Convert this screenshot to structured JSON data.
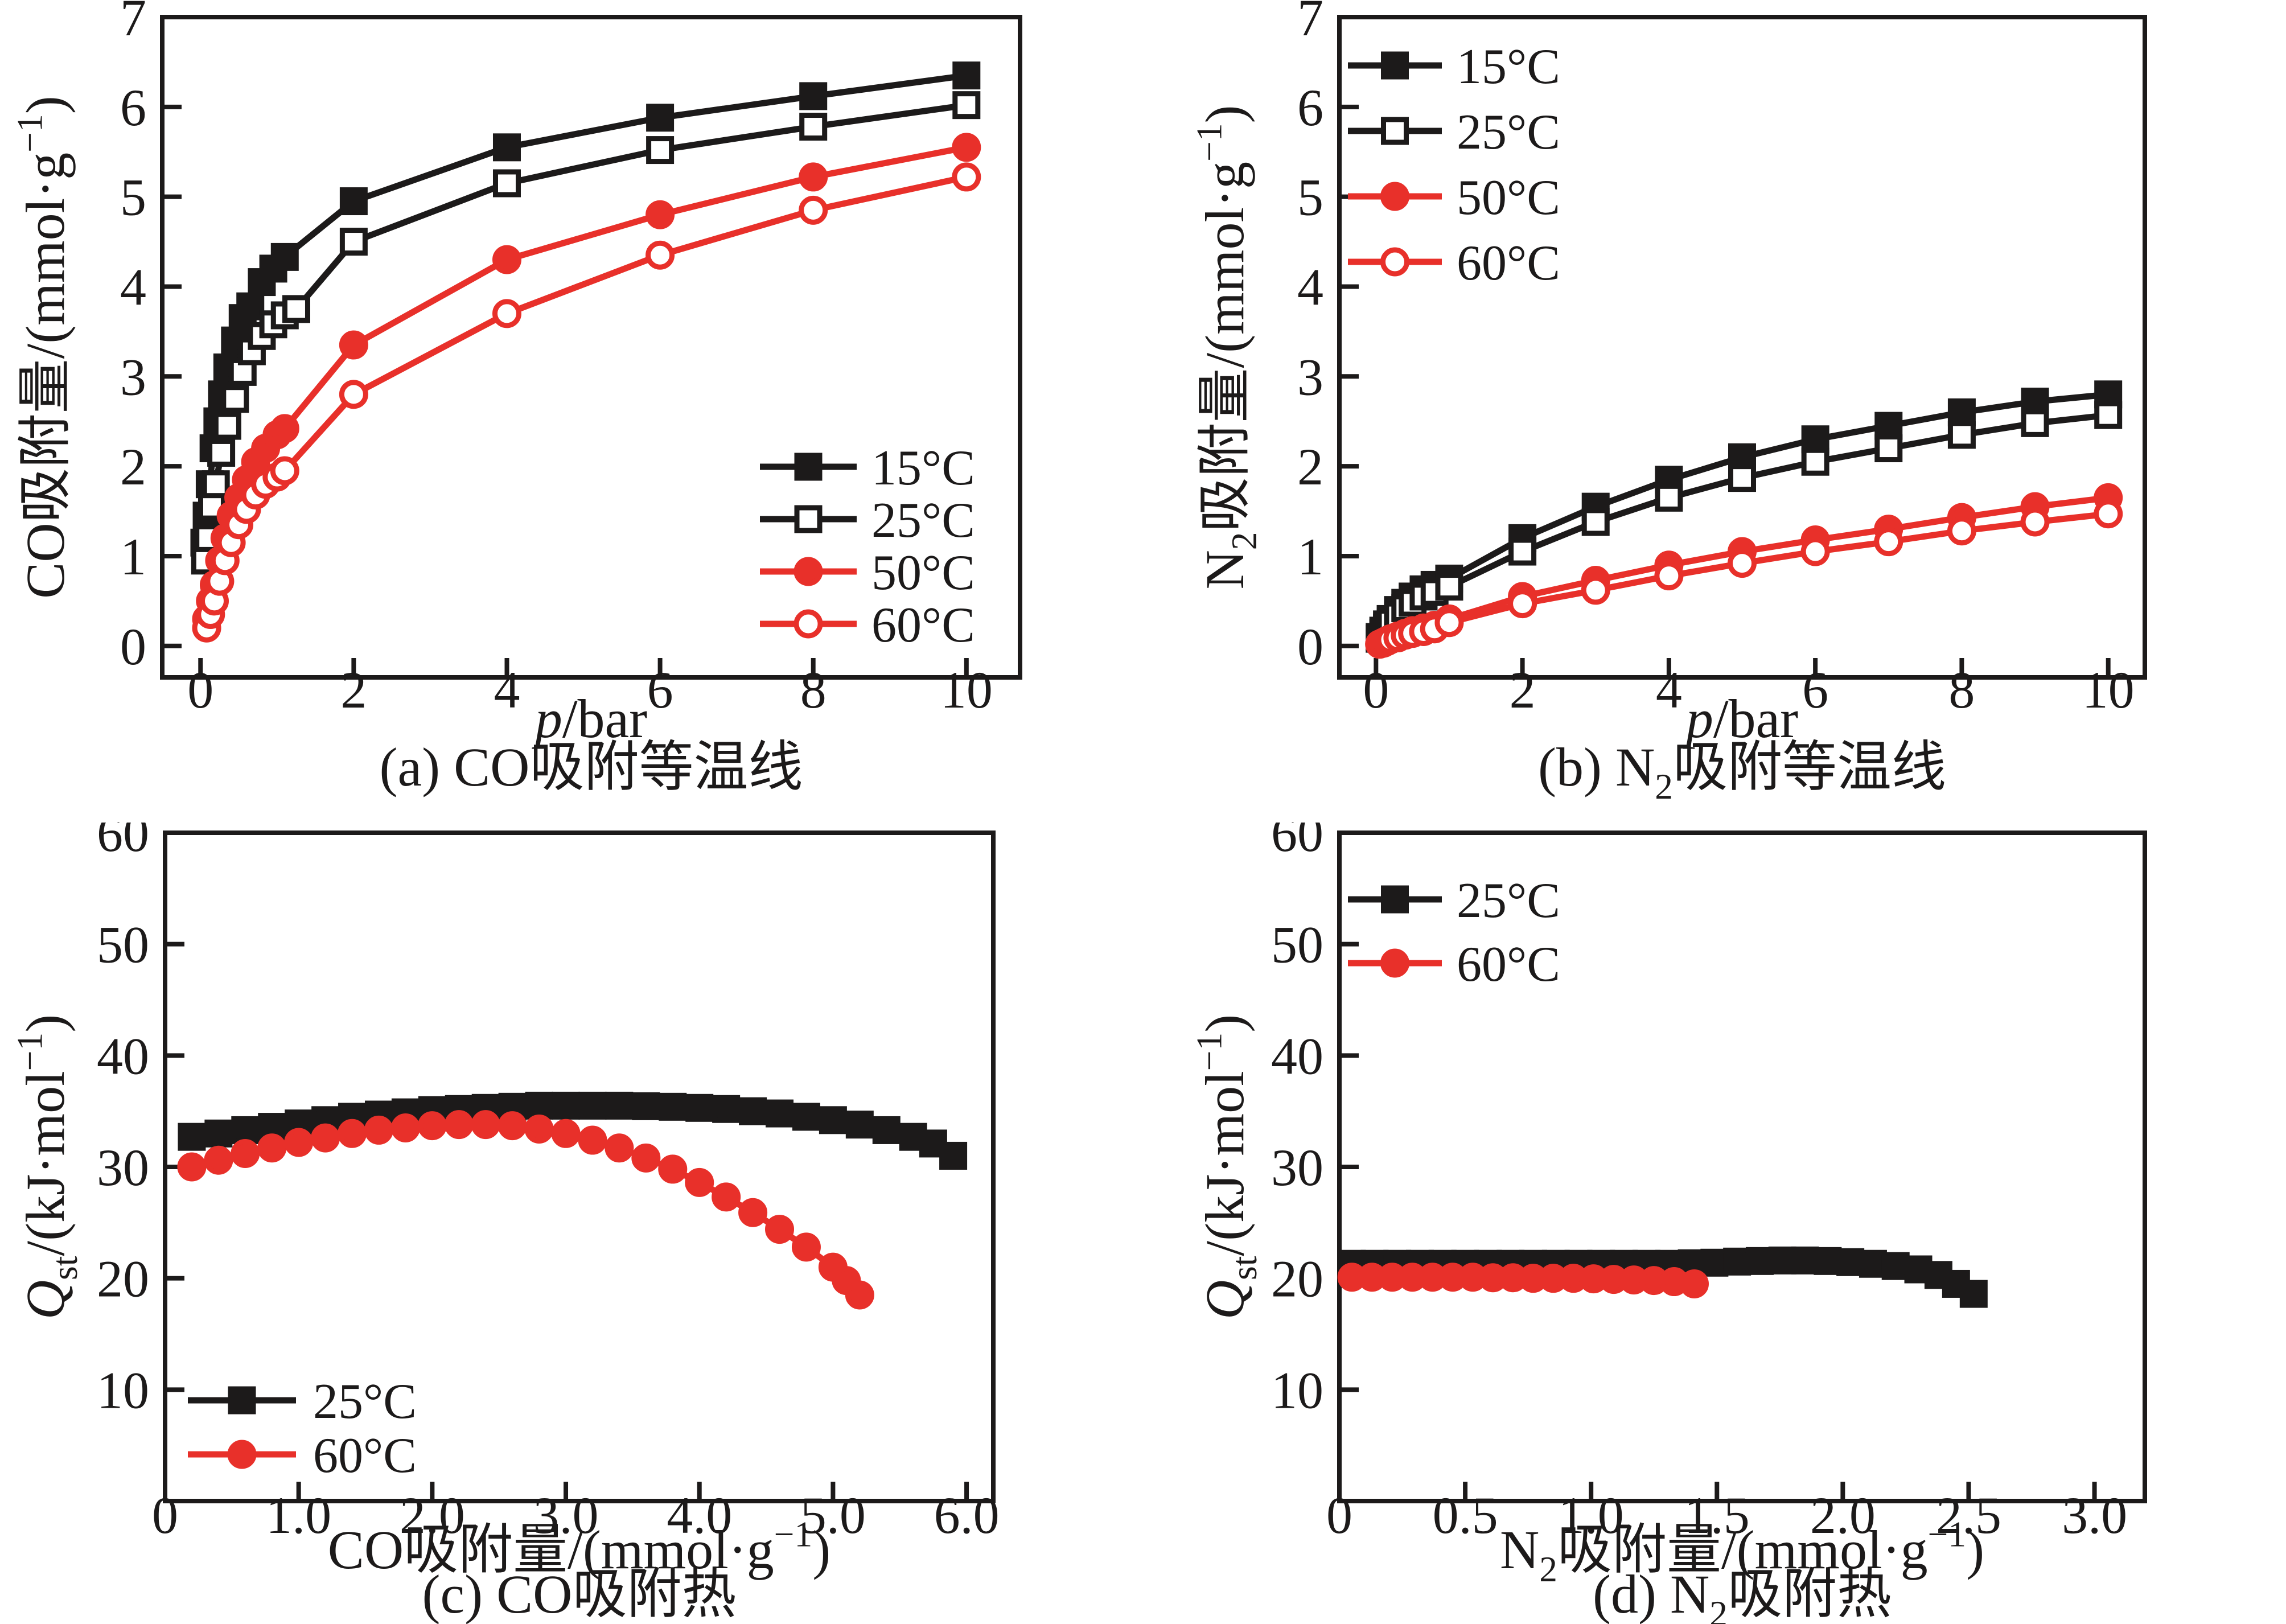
{
  "figure_title": "",
  "colors": {
    "black_series": "#1c1a1a",
    "red_series": "#e8302a",
    "axis": "#1c1a1a",
    "background": "#ffffff"
  },
  "chart_data": [
    {
      "panel": "a",
      "type": "line",
      "title": "(a) CO吸附等温线",
      "xlabel": "p/bar",
      "ylabel": "CO吸附量/(mmol·g⁻¹)",
      "xlabel_segments": [
        {
          "t": "p",
          "s": "i"
        },
        {
          "t": "/bar",
          "s": "n"
        }
      ],
      "ylabel_segments": [
        {
          "t": "CO吸附量/(mmol·g",
          "s": "n"
        },
        {
          "t": "−1",
          "s": "sup"
        },
        {
          "t": ")",
          "s": "n"
        }
      ],
      "caption_segments": [
        {
          "t": "(a) CO吸附等温线",
          "s": "n"
        }
      ],
      "xlim": [
        -0.5,
        10.7
      ],
      "ylim": [
        -0.35,
        7
      ],
      "xticks": [
        0,
        2,
        4,
        6,
        8,
        10
      ],
      "xtick_labels": [
        "0",
        "2",
        "4",
        "6",
        "8",
        "10"
      ],
      "yticks": [
        0,
        1,
        2,
        3,
        4,
        5,
        6,
        7
      ],
      "ytick_labels": [
        "0",
        "1",
        "2",
        "3",
        "4",
        "5",
        "6",
        "7"
      ],
      "grid": false,
      "legend_position": "bottom-right",
      "series": [
        {
          "name": "15°C",
          "color": "#1c1a1a",
          "marker": "square",
          "fill": "filled",
          "x": [
            0.05,
            0.08,
            0.12,
            0.17,
            0.22,
            0.28,
            0.35,
            0.45,
            0.55,
            0.65,
            0.8,
            0.95,
            1.1,
            2,
            4,
            6,
            8,
            10
          ],
          "y": [
            1.15,
            1.45,
            1.8,
            2.2,
            2.5,
            2.8,
            3.1,
            3.4,
            3.65,
            3.78,
            4.05,
            4.2,
            4.33,
            4.95,
            5.55,
            5.88,
            6.12,
            6.35
          ]
        },
        {
          "name": "25°C",
          "color": "#1c1a1a",
          "marker": "square",
          "fill": "open",
          "x": [
            0.06,
            0.1,
            0.15,
            0.2,
            0.27,
            0.35,
            0.45,
            0.55,
            0.67,
            0.8,
            0.95,
            1.1,
            1.25,
            2,
            4,
            6,
            8,
            10
          ],
          "y": [
            0.95,
            1.2,
            1.55,
            1.8,
            2.15,
            2.45,
            2.75,
            3.05,
            3.28,
            3.45,
            3.58,
            3.68,
            3.75,
            4.5,
            5.15,
            5.52,
            5.78,
            6.02
          ]
        },
        {
          "name": "50°C",
          "color": "#e8302a",
          "marker": "circle",
          "fill": "filled",
          "x": [
            0.08,
            0.13,
            0.18,
            0.25,
            0.32,
            0.4,
            0.5,
            0.6,
            0.72,
            0.85,
            1.0,
            1.1,
            2,
            4,
            6,
            8,
            10
          ],
          "y": [
            0.3,
            0.5,
            0.68,
            0.95,
            1.2,
            1.45,
            1.65,
            1.85,
            2.05,
            2.2,
            2.35,
            2.42,
            3.35,
            4.3,
            4.8,
            5.22,
            5.55
          ]
        },
        {
          "name": "60°C",
          "color": "#e8302a",
          "marker": "circle",
          "fill": "open",
          "x": [
            0.08,
            0.13,
            0.18,
            0.25,
            0.32,
            0.4,
            0.5,
            0.6,
            0.72,
            0.85,
            1.0,
            1.1,
            2,
            4,
            6,
            8,
            10
          ],
          "y": [
            0.2,
            0.35,
            0.5,
            0.72,
            0.95,
            1.15,
            1.35,
            1.52,
            1.68,
            1.8,
            1.88,
            1.95,
            2.8,
            3.7,
            4.35,
            4.85,
            5.22
          ]
        }
      ]
    },
    {
      "panel": "b",
      "type": "line",
      "title": "(b) N₂吸附等温线",
      "xlabel": "p/bar",
      "ylabel": "N₂吸附量/(mmol·g⁻¹)",
      "xlabel_segments": [
        {
          "t": "p",
          "s": "i"
        },
        {
          "t": "/bar",
          "s": "n"
        }
      ],
      "ylabel_segments": [
        {
          "t": "N",
          "s": "n"
        },
        {
          "t": "2",
          "s": "sub"
        },
        {
          "t": "吸附量/(mmol·g",
          "s": "n"
        },
        {
          "t": "−1",
          "s": "sup"
        },
        {
          "t": ")",
          "s": "n"
        }
      ],
      "caption_segments": [
        {
          "t": "(b) N",
          "s": "n"
        },
        {
          "t": "2",
          "s": "sub"
        },
        {
          "t": "吸附等温线",
          "s": "n"
        }
      ],
      "xlim": [
        -0.5,
        10.5
      ],
      "ylim": [
        -0.35,
        7
      ],
      "xticks": [
        0,
        2,
        4,
        6,
        8,
        10
      ],
      "xtick_labels": [
        "0",
        "2",
        "4",
        "6",
        "8",
        "10"
      ],
      "yticks": [
        0,
        1,
        2,
        3,
        4,
        5,
        6,
        7
      ],
      "ytick_labels": [
        "0",
        "1",
        "2",
        "3",
        "4",
        "5",
        "6",
        "7"
      ],
      "grid": false,
      "legend_position": "top-left",
      "series": [
        {
          "name": "15°C",
          "color": "#1c1a1a",
          "marker": "square",
          "fill": "filled",
          "x": [
            0.05,
            0.1,
            0.15,
            0.2,
            0.3,
            0.4,
            0.5,
            0.65,
            0.8,
            1.0,
            2,
            3,
            4,
            5,
            6,
            7,
            8,
            9,
            10
          ],
          "y": [
            0.1,
            0.17,
            0.24,
            0.3,
            0.4,
            0.48,
            0.55,
            0.63,
            0.68,
            0.75,
            1.2,
            1.55,
            1.85,
            2.1,
            2.3,
            2.45,
            2.6,
            2.72,
            2.8
          ]
        },
        {
          "name": "25°C",
          "color": "#1c1a1a",
          "marker": "square",
          "fill": "open",
          "x": [
            0.05,
            0.1,
            0.15,
            0.2,
            0.3,
            0.4,
            0.5,
            0.65,
            0.8,
            1.0,
            2,
            3,
            4,
            5,
            6,
            7,
            8,
            9,
            10
          ],
          "y": [
            0.08,
            0.14,
            0.2,
            0.26,
            0.34,
            0.42,
            0.48,
            0.55,
            0.6,
            0.66,
            1.05,
            1.38,
            1.65,
            1.87,
            2.05,
            2.2,
            2.35,
            2.48,
            2.57
          ]
        },
        {
          "name": "50°C",
          "color": "#e8302a",
          "marker": "circle",
          "fill": "filled",
          "x": [
            0.05,
            0.1,
            0.15,
            0.2,
            0.3,
            0.4,
            0.5,
            0.65,
            0.8,
            1.0,
            2,
            3,
            4,
            5,
            6,
            7,
            8,
            9,
            10
          ],
          "y": [
            0.02,
            0.04,
            0.06,
            0.08,
            0.11,
            0.14,
            0.17,
            0.2,
            0.23,
            0.3,
            0.55,
            0.73,
            0.9,
            1.05,
            1.18,
            1.3,
            1.43,
            1.55,
            1.65
          ]
        },
        {
          "name": "60°C",
          "color": "#e8302a",
          "marker": "circle",
          "fill": "open",
          "x": [
            0.05,
            0.1,
            0.15,
            0.2,
            0.3,
            0.4,
            0.5,
            0.65,
            0.8,
            1.0,
            2,
            3,
            4,
            5,
            6,
            7,
            8,
            9,
            10
          ],
          "y": [
            0.02,
            0.03,
            0.05,
            0.07,
            0.09,
            0.12,
            0.14,
            0.16,
            0.19,
            0.26,
            0.47,
            0.62,
            0.78,
            0.92,
            1.05,
            1.16,
            1.28,
            1.38,
            1.47
          ]
        }
      ]
    },
    {
      "panel": "c",
      "type": "line",
      "title": "(c) CO吸附热",
      "xlabel": "CO吸附量/(mmol·g⁻¹)",
      "ylabel": "Qst/(kJ·mol⁻¹)",
      "xlabel_segments": [
        {
          "t": "CO吸附量/(mmol·g",
          "s": "n"
        },
        {
          "t": "−1",
          "s": "sup"
        },
        {
          "t": ")",
          "s": "n"
        }
      ],
      "ylabel_segments": [
        {
          "t": "Q",
          "s": "i"
        },
        {
          "t": "st",
          "s": "sub"
        },
        {
          "t": "/(kJ·mol",
          "s": "n"
        },
        {
          "t": "−1",
          "s": "sup"
        },
        {
          "t": ")",
          "s": "n"
        }
      ],
      "caption_segments": [
        {
          "t": "(c) CO吸附热",
          "s": "n"
        }
      ],
      "xlim": [
        0,
        6.2
      ],
      "ylim": [
        0,
        60
      ],
      "xticks": [
        0,
        1,
        2,
        3,
        4,
        5,
        6
      ],
      "xtick_labels": [
        "0",
        "1.0",
        "2.0",
        "3.0",
        "4.0",
        "5.0",
        "6.0"
      ],
      "yticks": [
        10,
        20,
        30,
        40,
        50,
        60
      ],
      "ytick_labels": [
        "10",
        "20",
        "30",
        "40",
        "50",
        "60"
      ],
      "grid": false,
      "legend_position": "bottom-left",
      "series": [
        {
          "name": "25°C",
          "color": "#1c1a1a",
          "marker": "square",
          "fill": "filled",
          "x": [
            0.2,
            0.4,
            0.6,
            0.8,
            1.0,
            1.2,
            1.4,
            1.6,
            1.8,
            2.0,
            2.2,
            2.4,
            2.6,
            2.8,
            3.0,
            3.2,
            3.4,
            3.6,
            3.8,
            4.0,
            4.2,
            4.4,
            4.6,
            4.8,
            5.0,
            5.2,
            5.4,
            5.6,
            5.75,
            5.9
          ],
          "y": [
            32.7,
            33.0,
            33.3,
            33.6,
            33.9,
            34.2,
            34.5,
            34.7,
            34.9,
            35.1,
            35.2,
            35.3,
            35.4,
            35.5,
            35.5,
            35.5,
            35.5,
            35.45,
            35.4,
            35.3,
            35.2,
            35.0,
            34.8,
            34.5,
            34.2,
            33.8,
            33.3,
            32.7,
            32.1,
            31.0
          ]
        },
        {
          "name": "60°C",
          "color": "#e8302a",
          "marker": "circle",
          "fill": "filled",
          "x": [
            0.2,
            0.4,
            0.6,
            0.8,
            1.0,
            1.2,
            1.4,
            1.6,
            1.8,
            2.0,
            2.2,
            2.4,
            2.6,
            2.8,
            3.0,
            3.2,
            3.4,
            3.6,
            3.8,
            4.0,
            4.2,
            4.4,
            4.6,
            4.8,
            5.0,
            5.1,
            5.2
          ],
          "y": [
            30.0,
            30.6,
            31.2,
            31.7,
            32.2,
            32.6,
            33.0,
            33.3,
            33.5,
            33.7,
            33.8,
            33.8,
            33.7,
            33.4,
            33.0,
            32.4,
            31.7,
            30.8,
            29.8,
            28.6,
            27.3,
            25.9,
            24.4,
            22.8,
            21.0,
            19.8,
            18.5
          ]
        }
      ]
    },
    {
      "panel": "d",
      "type": "line",
      "title": "(d) N₂吸附热",
      "xlabel": "N₂吸附量/(mmol·g⁻¹)",
      "ylabel": "Qst/(kJ·mol⁻¹)",
      "xlabel_segments": [
        {
          "t": "N",
          "s": "n"
        },
        {
          "t": "2",
          "s": "sub"
        },
        {
          "t": "吸附量/(mmol·g",
          "s": "n"
        },
        {
          "t": "−1",
          "s": "sup"
        },
        {
          "t": ")",
          "s": "n"
        }
      ],
      "ylabel_segments": [
        {
          "t": "Q",
          "s": "i"
        },
        {
          "t": "st",
          "s": "sub"
        },
        {
          "t": "/(kJ·mol",
          "s": "n"
        },
        {
          "t": "−1",
          "s": "sup"
        },
        {
          "t": ")",
          "s": "n"
        }
      ],
      "caption_segments": [
        {
          "t": "(d) N",
          "s": "n"
        },
        {
          "t": "2",
          "s": "sub"
        },
        {
          "t": "吸附热",
          "s": "n"
        }
      ],
      "xlim": [
        0,
        3.2
      ],
      "ylim": [
        0,
        60
      ],
      "xticks": [
        0,
        0.5,
        1.0,
        1.5,
        2.0,
        2.5,
        3.0
      ],
      "xtick_labels": [
        "0",
        "0.5",
        "1.0",
        "1.5",
        "2.0",
        "2.5",
        "3.0"
      ],
      "yticks": [
        10,
        20,
        30,
        40,
        50,
        60
      ],
      "ytick_labels": [
        "10",
        "20",
        "30",
        "40",
        "50",
        "60"
      ],
      "grid": false,
      "legend_position": "top-left",
      "series": [
        {
          "name": "25°C",
          "color": "#1c1a1a",
          "marker": "square",
          "fill": "filled",
          "x": [
            0.05,
            0.14,
            0.23,
            0.32,
            0.41,
            0.5,
            0.59,
            0.68,
            0.77,
            0.86,
            0.95,
            1.04,
            1.13,
            1.22,
            1.31,
            1.4,
            1.49,
            1.58,
            1.67,
            1.76,
            1.85,
            1.94,
            2.03,
            2.12,
            2.21,
            2.3,
            2.38,
            2.45,
            2.52
          ],
          "y": [
            21.3,
            21.3,
            21.3,
            21.3,
            21.3,
            21.3,
            21.3,
            21.3,
            21.3,
            21.3,
            21.3,
            21.3,
            21.3,
            21.3,
            21.3,
            21.35,
            21.4,
            21.5,
            21.55,
            21.6,
            21.6,
            21.55,
            21.45,
            21.3,
            21.1,
            20.8,
            20.3,
            19.5,
            18.6
          ]
        },
        {
          "name": "60°C",
          "color": "#e8302a",
          "marker": "circle",
          "fill": "filled",
          "x": [
            0.05,
            0.13,
            0.21,
            0.29,
            0.37,
            0.45,
            0.53,
            0.61,
            0.69,
            0.77,
            0.85,
            0.93,
            1.01,
            1.09,
            1.17,
            1.25,
            1.33,
            1.41
          ],
          "y": [
            20.1,
            20.1,
            20.1,
            20.1,
            20.1,
            20.1,
            20.1,
            20.05,
            20.05,
            20.0,
            20.0,
            20.0,
            19.95,
            19.9,
            19.85,
            19.8,
            19.7,
            19.5
          ]
        }
      ]
    }
  ]
}
